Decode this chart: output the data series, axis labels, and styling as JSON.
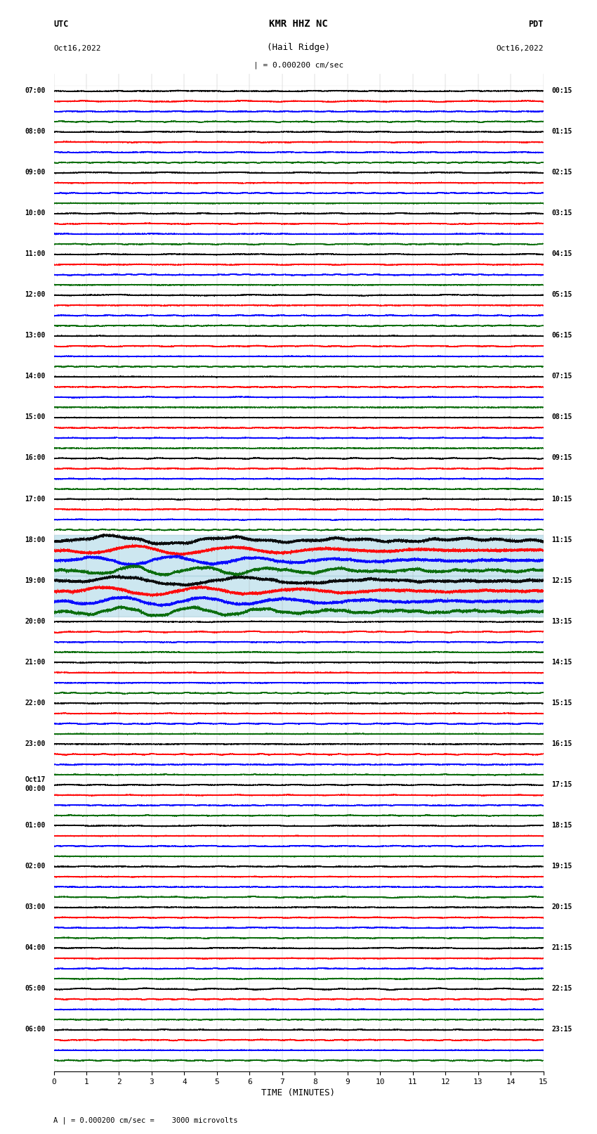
{
  "title_line1": "KMR HHZ NC",
  "title_line2": "(Hail Ridge)",
  "scale_label": "| = 0.000200 cm/sec",
  "utc_label": "UTC",
  "date_left": "Oct16,2022",
  "date_right": "Oct16,2022",
  "pdt_label": "PDT",
  "bottom_note": "A | = 0.000200 cm/sec =    3000 microvolts",
  "xlabel": "TIME (MINUTES)",
  "bg_color": "#ffffff",
  "trace_colors": [
    "#000000",
    "#ff0000",
    "#0000ff",
    "#006600"
  ],
  "highlight_bg": "#add8e6",
  "left_times": [
    "07:00",
    "08:00",
    "09:00",
    "10:00",
    "11:00",
    "12:00",
    "13:00",
    "14:00",
    "15:00",
    "16:00",
    "17:00",
    "18:00",
    "19:00",
    "20:00",
    "21:00",
    "22:00",
    "23:00",
    "Oct17\n00:00",
    "01:00",
    "02:00",
    "03:00",
    "04:00",
    "05:00",
    "06:00"
  ],
  "right_times": [
    "00:15",
    "01:15",
    "02:15",
    "03:15",
    "04:15",
    "05:15",
    "06:15",
    "07:15",
    "08:15",
    "09:15",
    "10:15",
    "11:15",
    "12:15",
    "13:15",
    "14:15",
    "15:15",
    "16:15",
    "17:15",
    "18:15",
    "19:15",
    "20:15",
    "21:15",
    "22:15",
    "23:15"
  ],
  "n_rows": 24,
  "traces_per_row": 4,
  "minutes": 15,
  "sample_rate": 50,
  "event_amplitude": 3.0,
  "highlight_rows": [
    11,
    12
  ],
  "xlim": [
    0,
    15
  ],
  "xticks": [
    0,
    1,
    2,
    3,
    4,
    5,
    6,
    7,
    8,
    9,
    10,
    11,
    12,
    13,
    14,
    15
  ]
}
